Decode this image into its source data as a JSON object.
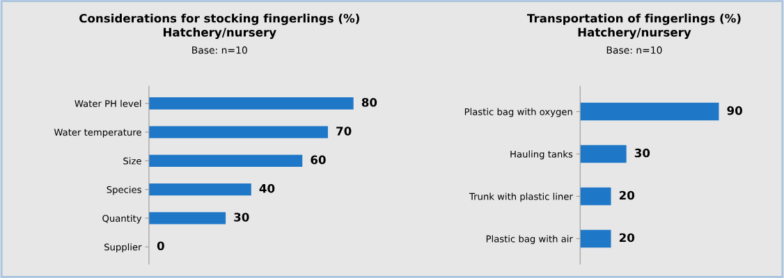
{
  "chart_data": [
    {
      "type": "bar",
      "orientation": "horizontal",
      "title": "Considerations for stocking fingerlings (%)\nHatchery/nursery",
      "subtitle": "Base: n=10",
      "categories": [
        "Water PH level",
        "Water temperature",
        "Size",
        "Species",
        "Quantity",
        "Supplier"
      ],
      "values": [
        80,
        70,
        60,
        40,
        30,
        0
      ],
      "color": "#1f77c8",
      "data_labels": true
    },
    {
      "type": "bar",
      "orientation": "horizontal",
      "title": "Transportation of fingerlings (%)\nHatchery/nursery",
      "subtitle": "Base: n=10",
      "categories": [
        "Plastic bag with oxygen",
        "Hauling tanks",
        "Trunk with plastic liner",
        "Plastic bag with air"
      ],
      "values": [
        90,
        30,
        20,
        20
      ],
      "color": "#1f77c8",
      "data_labels": true
    }
  ]
}
